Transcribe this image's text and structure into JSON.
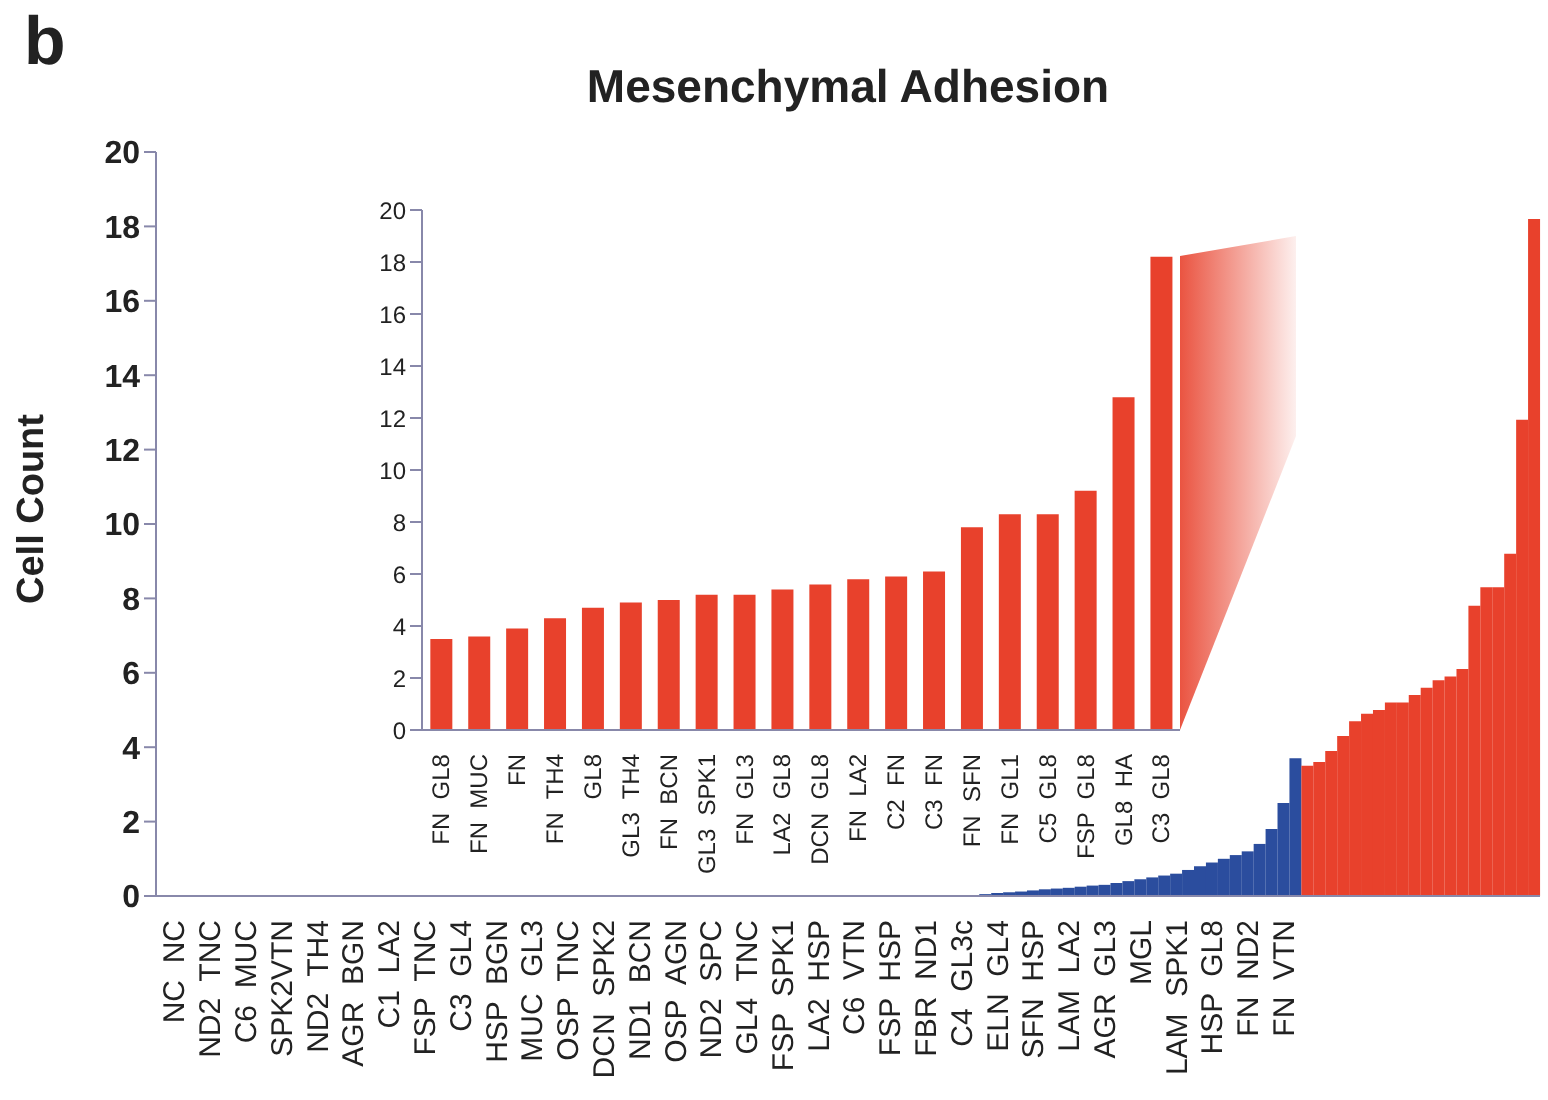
{
  "chart_data": [
    {
      "type": "bar",
      "title": "Mesenchymal Adhesion",
      "ylabel": "Cell Count",
      "annotations": [
        "b"
      ],
      "stacked": true,
      "ylim": [
        0,
        20
      ],
      "yticks": [
        0,
        2,
        4,
        6,
        8,
        10,
        12,
        14,
        16,
        18,
        20
      ],
      "categories": [
        null,
        "NC  NC",
        null,
        null,
        "ND2  TNC",
        null,
        null,
        "C6  MUC",
        null,
        null,
        "SPK2VTN",
        null,
        null,
        "ND2  TH4",
        null,
        null,
        "AGR  BGN",
        null,
        null,
        "C1  LA2",
        null,
        null,
        "FSP  TNC",
        null,
        null,
        "C3  GL4",
        null,
        null,
        "HSP  BGN",
        null,
        null,
        "MUC  GL3",
        null,
        null,
        "OSP  TNC",
        null,
        null,
        "DCN  SPK2",
        null,
        null,
        "ND1  BCN",
        null,
        null,
        "OSP  AGN",
        null,
        null,
        "ND2  SPC",
        null,
        null,
        "GL4  TNC",
        null,
        null,
        "FSP  SPK1",
        null,
        null,
        "LA2  HSP",
        null,
        null,
        "C6  VTN",
        null,
        null,
        "FSP  HSP",
        null,
        null,
        "FBR  ND1",
        null,
        null,
        "C4  GL3c",
        null,
        null,
        "ELN  GL4",
        null,
        null,
        "SFN  HSP",
        null,
        null,
        "LAM  LA2",
        null,
        null,
        "AGR  GL3",
        null,
        null,
        "MGL",
        null,
        null,
        "LAM  SPK1",
        null,
        null,
        "HSP  GL8",
        null,
        null,
        "FN  ND2",
        null,
        null,
        "FN  VTN",
        null,
        null,
        null,
        null,
        null,
        null,
        null,
        null,
        null,
        null,
        null,
        null,
        null,
        null,
        null,
        null,
        null,
        null,
        null,
        null,
        null
      ],
      "series": [
        {
          "color": "#2b4d9e",
          "values": [
            0,
            0,
            0,
            0,
            0,
            0,
            0,
            0,
            0,
            0,
            0,
            0,
            0,
            0,
            0,
            0,
            0,
            0,
            0,
            0,
            0,
            0,
            0,
            0,
            0,
            0,
            0,
            0,
            0,
            0,
            0,
            0,
            0,
            0,
            0,
            0,
            0,
            0,
            0,
            0,
            0,
            0,
            0,
            0,
            0,
            0,
            0,
            0,
            0,
            0,
            0,
            0,
            0,
            0,
            0,
            0,
            0,
            0,
            0,
            0,
            0,
            0,
            0,
            0,
            0,
            0,
            0,
            0,
            0,
            0.05,
            0.08,
            0.1,
            0.12,
            0.15,
            0.18,
            0.2,
            0.22,
            0.25,
            0.28,
            0.3,
            0.35,
            0.4,
            0.45,
            0.5,
            0.55,
            0.6,
            0.7,
            0.8,
            0.9,
            1.0,
            1.1,
            1.2,
            1.4,
            1.8,
            2.5,
            3.7,
            null,
            null,
            null,
            null,
            null,
            null,
            null,
            null,
            null,
            null,
            null,
            null,
            null,
            null,
            null,
            null,
            null,
            null,
            null,
            null
          ]
        },
        {
          "color": "#e8412c",
          "values": [
            null,
            null,
            null,
            null,
            null,
            null,
            null,
            null,
            null,
            null,
            null,
            null,
            null,
            null,
            null,
            null,
            null,
            null,
            null,
            null,
            null,
            null,
            null,
            null,
            null,
            null,
            null,
            null,
            null,
            null,
            null,
            null,
            null,
            null,
            null,
            null,
            null,
            null,
            null,
            null,
            null,
            null,
            null,
            null,
            null,
            null,
            null,
            null,
            null,
            null,
            null,
            null,
            null,
            null,
            null,
            null,
            null,
            null,
            null,
            null,
            null,
            null,
            null,
            null,
            null,
            null,
            null,
            null,
            null,
            null,
            null,
            null,
            null,
            null,
            null,
            null,
            null,
            null,
            null,
            null,
            null,
            null,
            null,
            null,
            null,
            null,
            null,
            null,
            null,
            null,
            null,
            null,
            null,
            null,
            null,
            null,
            3.5,
            3.6,
            3.9,
            4.3,
            4.7,
            4.9,
            5.0,
            5.2,
            5.2,
            5.4,
            5.6,
            5.8,
            5.9,
            6.1,
            7.8,
            8.3,
            8.3,
            9.2,
            12.8,
            18.2
          ]
        }
      ]
    },
    {
      "type": "bar",
      "ylim": [
        0,
        20
      ],
      "yticks": [
        0,
        2,
        4,
        6,
        8,
        10,
        12,
        14,
        16,
        18,
        20
      ],
      "color": "#e8412c",
      "categories": [
        "FN  GL8",
        "FN  MUC",
        "FN",
        "FN  TH4",
        "GL8",
        "GL3  TH4",
        "FN  BCN",
        "GL3  SPK1",
        "FN  GL3",
        "LA2  GL8",
        "DCN  GL8",
        "FN  LA2",
        "C2  FN",
        "C3  FN",
        "FN  SFN",
        "FN  GL1",
        "C5  GL8",
        "FSP  GL8",
        "GL8  HA",
        "C3  GL8"
      ],
      "values": [
        3.5,
        3.6,
        3.9,
        4.3,
        4.7,
        4.9,
        5.0,
        5.2,
        5.2,
        5.4,
        5.6,
        5.8,
        5.9,
        6.1,
        7.8,
        8.3,
        8.3,
        9.2,
        12.8,
        18.2
      ]
    }
  ]
}
